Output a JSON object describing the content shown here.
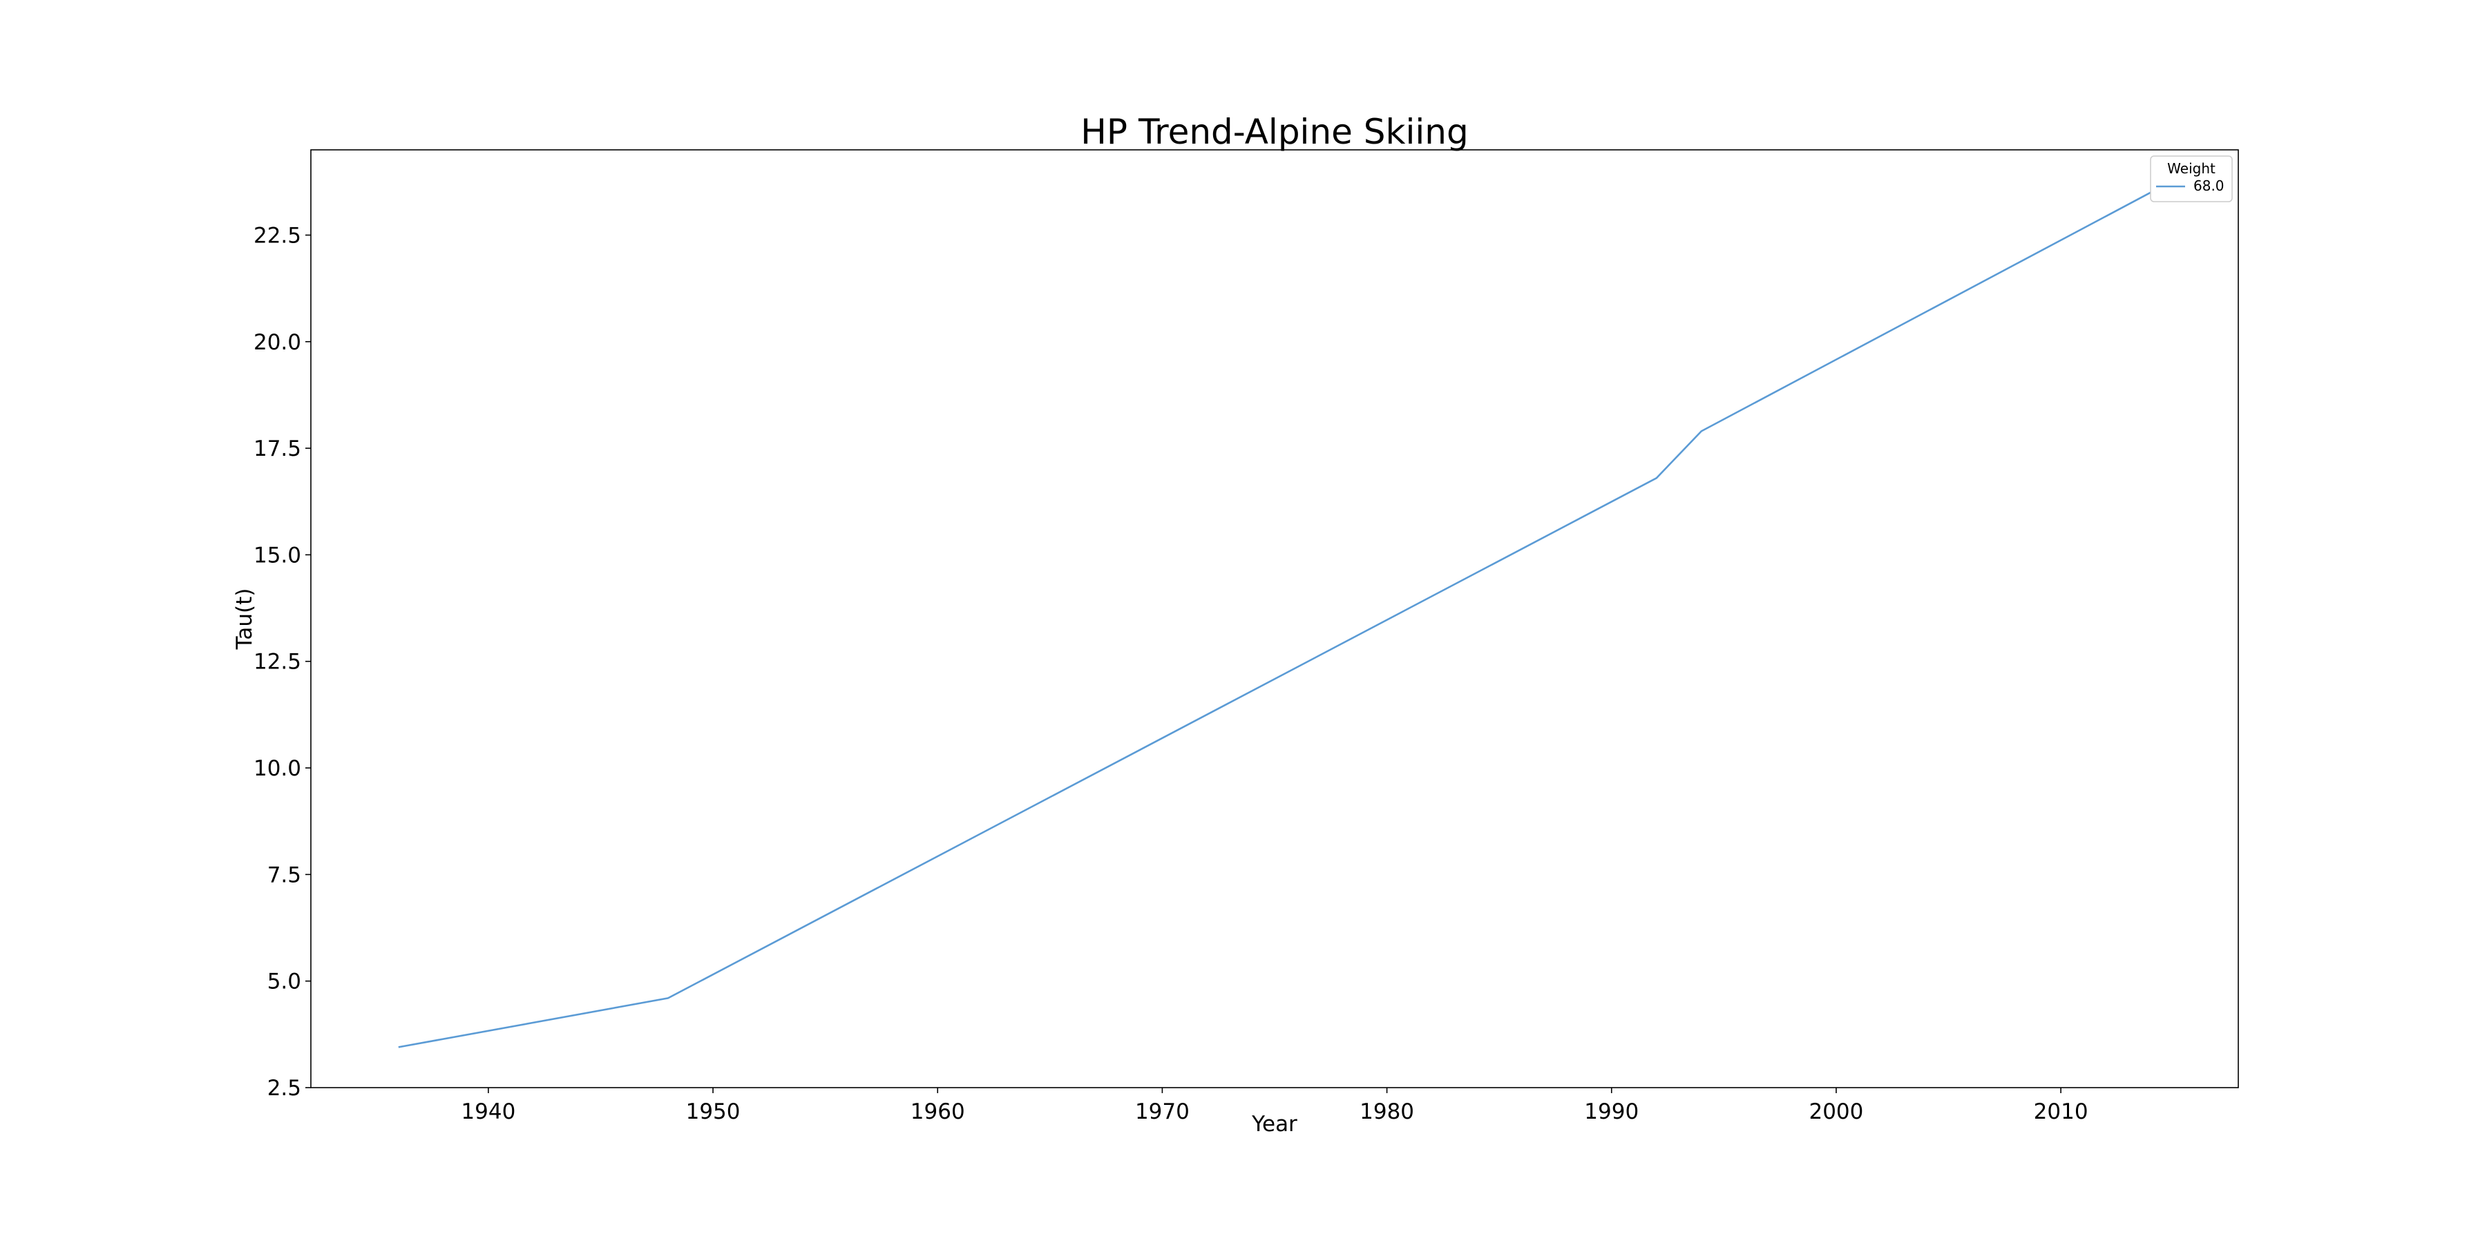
{
  "chart_data": {
    "type": "line",
    "title": "HP Trend-Alpine Skiing",
    "xlabel": "Year",
    "ylabel": "Tau(t)",
    "xlim": [
      1932.1,
      2017.9
    ],
    "ylim": [
      2.5,
      24.5
    ],
    "xticks": [
      1940,
      1950,
      1960,
      1970,
      1980,
      1990,
      2000,
      2010
    ],
    "yticks": [
      2.5,
      5.0,
      7.5,
      10.0,
      12.5,
      15.0,
      17.5,
      20.0,
      22.5
    ],
    "grid": false,
    "legend": {
      "title": "Weight",
      "placement": "top-right"
    },
    "series": [
      {
        "name": "68.0",
        "color": "#5b9bd5",
        "x": [
          1936,
          1948,
          1992,
          1994,
          2014
        ],
        "y": [
          3.45,
          4.6,
          16.8,
          17.9,
          23.5
        ]
      }
    ]
  }
}
